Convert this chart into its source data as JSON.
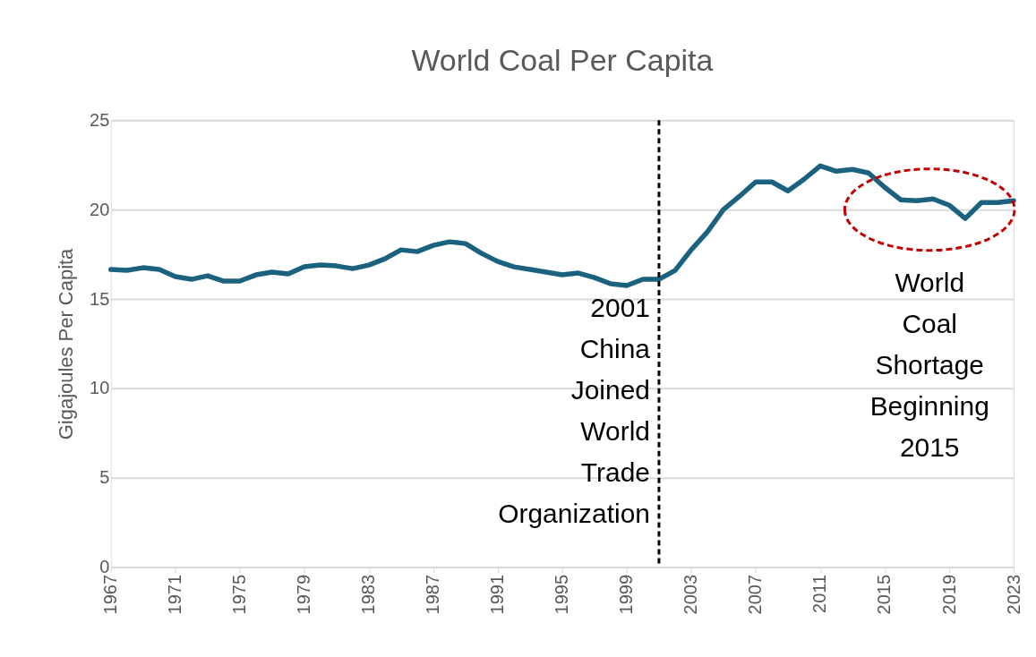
{
  "chart_data": {
    "type": "line",
    "title": "World Coal Per Capita",
    "ylabel": "Gigajoules Per Capita",
    "x": [
      1967,
      1968,
      1969,
      1970,
      1971,
      1972,
      1973,
      1974,
      1975,
      1976,
      1977,
      1978,
      1979,
      1980,
      1981,
      1982,
      1983,
      1984,
      1985,
      1986,
      1987,
      1988,
      1989,
      1990,
      1991,
      1992,
      1993,
      1994,
      1995,
      1996,
      1997,
      1998,
      1999,
      2000,
      2001,
      2002,
      2003,
      2004,
      2005,
      2006,
      2007,
      2008,
      2009,
      2010,
      2011,
      2012,
      2013,
      2014,
      2015,
      2016,
      2017,
      2018,
      2019,
      2020,
      2021,
      2022,
      2023
    ],
    "series": [
      {
        "color": "#1b6281",
        "values": [
          16.65,
          16.6,
          16.75,
          16.65,
          16.25,
          16.1,
          16.3,
          16.0,
          16.0,
          16.35,
          16.5,
          16.4,
          16.8,
          16.9,
          16.85,
          16.7,
          16.9,
          17.25,
          17.75,
          17.65,
          18.0,
          18.2,
          18.1,
          17.55,
          17.1,
          16.8,
          16.65,
          16.5,
          16.35,
          16.45,
          16.2,
          15.85,
          15.75,
          16.1,
          16.1,
          16.6,
          17.75,
          18.75,
          20.0,
          20.75,
          21.55,
          21.55,
          21.05,
          21.7,
          22.45,
          22.15,
          22.25,
          22.05,
          21.25,
          20.55,
          20.5,
          20.6,
          20.25,
          19.5,
          20.4,
          20.4,
          20.5
        ]
      }
    ],
    "xlim": [
      1967,
      2023
    ],
    "xticks": [
      1967,
      1971,
      1975,
      1979,
      1983,
      1987,
      1991,
      1995,
      1999,
      2003,
      2007,
      2011,
      2015,
      2019,
      2023
    ],
    "ylim": [
      0,
      25
    ],
    "yticks": [
      0,
      5,
      10,
      15,
      20,
      25
    ],
    "grid": "y",
    "line_style": "solid",
    "marker": "none",
    "ref_lines": [
      {
        "axis": "x",
        "value": 2001,
        "label": "2001 China Joined World Trade Organization",
        "color": "#000000",
        "line_style": "dashed"
      }
    ],
    "annotations": [
      "World Coal Shortage Beginning 2015"
    ]
  }
}
